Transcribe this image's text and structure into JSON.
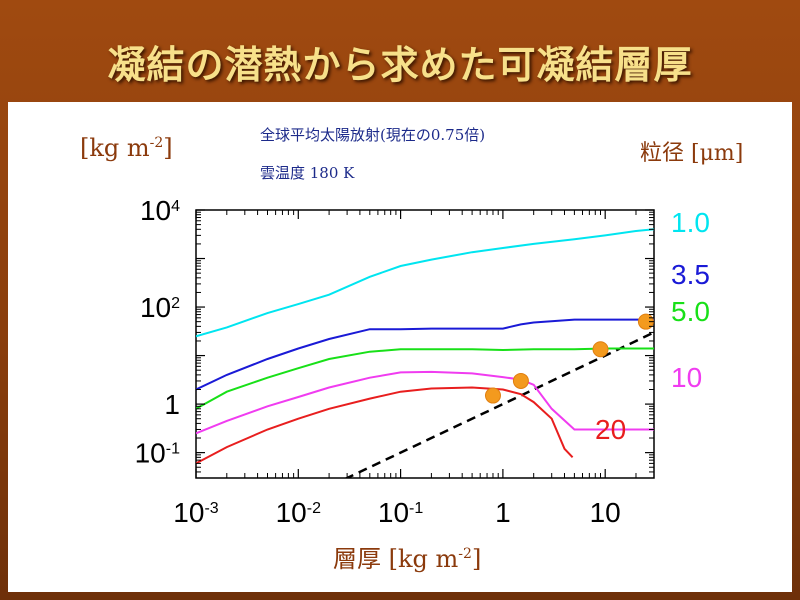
{
  "slide": {
    "title": "凝結の潜熱から求めた可凝結層厚"
  },
  "annotations": {
    "condition1": "全球平均太陽放射(現在の0.75倍)",
    "condition2": "雲温度  180 K",
    "particle_size_label": "粒径 [μm]"
  },
  "colors": {
    "background": "#8a3e0c",
    "title": "#f7e08a",
    "axis_label": "#8b3a0c",
    "note": "#1c2a8a",
    "marker": "#f39a1e"
  },
  "chart_data": {
    "type": "line",
    "xscale": "log",
    "yscale": "log",
    "xlim": [
      0.001,
      30
    ],
    "ylim": [
      0.03,
      10000
    ],
    "xlabel": {
      "base": "層厚  [kg m",
      "sup": "-2",
      "tail": "]"
    },
    "ylabel": {
      "base": "[kg m",
      "sup": "-2",
      "tail": "]"
    },
    "xticks": [
      {
        "v": 0.001,
        "base": "10",
        "sup": "-3"
      },
      {
        "v": 0.01,
        "base": "10",
        "sup": "-2"
      },
      {
        "v": 0.1,
        "base": "10",
        "sup": "-1"
      },
      {
        "v": 1,
        "base": "1",
        "sup": ""
      },
      {
        "v": 10,
        "base": "10",
        "sup": ""
      }
    ],
    "yticks": [
      {
        "v": 0.1,
        "base": "10",
        "sup": "-1"
      },
      {
        "v": 1,
        "base": "1",
        "sup": ""
      },
      {
        "v": 100,
        "base": "10",
        "sup": "2"
      },
      {
        "v": 10000,
        "base": "10",
        "sup": "4"
      }
    ],
    "grid": false,
    "series": [
      {
        "name": "1.0",
        "color": "#00e5f0",
        "x": [
          0.001,
          0.002,
          0.005,
          0.01,
          0.02,
          0.05,
          0.1,
          0.2,
          0.5,
          1,
          2,
          5,
          10,
          20,
          30
        ],
        "y": [
          25,
          38,
          75,
          115,
          180,
          420,
          700,
          950,
          1350,
          1650,
          2000,
          2500,
          3000,
          3700,
          4000
        ]
      },
      {
        "name": "3.5",
        "color": "#1a1ad6",
        "x": [
          0.001,
          0.002,
          0.005,
          0.01,
          0.02,
          0.05,
          0.1,
          0.2,
          0.5,
          1,
          1.5,
          2,
          5,
          10,
          20,
          30
        ],
        "y": [
          2,
          4,
          8.5,
          14,
          22,
          35,
          35,
          36,
          36,
          36,
          44,
          48,
          55,
          55,
          55,
          55
        ]
      },
      {
        "name": "5.0",
        "color": "#18e018",
        "x": [
          0.001,
          0.002,
          0.005,
          0.01,
          0.02,
          0.05,
          0.1,
          0.2,
          0.5,
          1,
          2,
          5,
          10,
          20,
          30
        ],
        "y": [
          0.8,
          1.8,
          3.5,
          5.5,
          8.5,
          12,
          13.5,
          13.5,
          13.5,
          13,
          13.5,
          13.5,
          14,
          14,
          14
        ]
      },
      {
        "name": "10",
        "color": "#f03cf0",
        "x": [
          0.001,
          0.002,
          0.005,
          0.01,
          0.02,
          0.05,
          0.1,
          0.2,
          0.5,
          1,
          1.5,
          2,
          3,
          5,
          10,
          20,
          30
        ],
        "y": [
          0.25,
          0.45,
          0.9,
          1.4,
          2.2,
          3.5,
          4.5,
          4.6,
          4.3,
          3.6,
          3.2,
          2.5,
          0.8,
          0.3,
          0.3,
          0.3,
          0.3
        ]
      },
      {
        "name": "20",
        "color": "#e81e1e",
        "x": [
          0.001,
          0.002,
          0.005,
          0.01,
          0.02,
          0.05,
          0.1,
          0.2,
          0.5,
          1,
          1.5,
          2,
          3,
          4,
          4.8
        ],
        "y": [
          0.06,
          0.13,
          0.3,
          0.5,
          0.8,
          1.3,
          1.8,
          2.1,
          2.2,
          2.0,
          1.6,
          1.1,
          0.5,
          0.12,
          0.08
        ]
      }
    ],
    "reference_line": {
      "style": "dashed",
      "color": "#000000",
      "x": [
        0.001,
        30
      ],
      "y": [
        0.001,
        30
      ]
    },
    "markers": [
      {
        "series": "20",
        "x": 0.8,
        "y": 1.5
      },
      {
        "series": "10",
        "x": 1.5,
        "y": 3.0
      },
      {
        "series": "5.0",
        "x": 9,
        "y": 13.5
      },
      {
        "series": "3.5",
        "x": 25,
        "y": 50
      }
    ]
  }
}
